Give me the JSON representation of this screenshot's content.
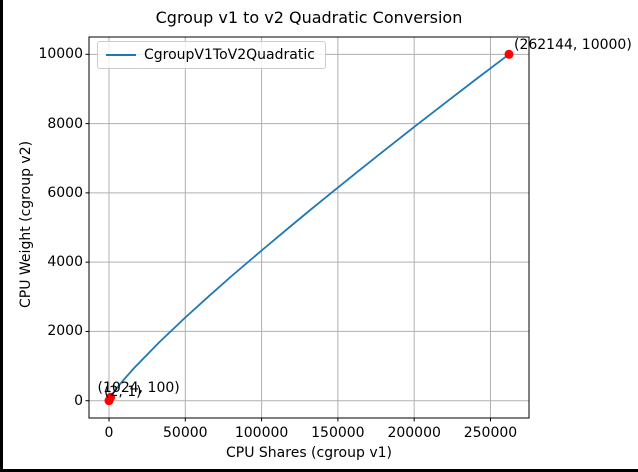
{
  "window": {
    "background_color": "#000000",
    "figure_background_color": "#ffffff"
  },
  "chart_data": {
    "type": "line",
    "title": "Cgroup v1 to v2 Quadratic Conversion",
    "xlabel": "CPU Shares (cgroup v1)",
    "ylabel": "CPU Weight (cgroup v2)",
    "grid": true,
    "legend_position": "upper left",
    "legend_entries": [
      "CgroupV1ToV2Quadratic"
    ],
    "xlim": [
      -13107,
      275251
    ],
    "ylim": [
      -499,
      10500
    ],
    "x_ticks": [
      0,
      50000,
      100000,
      150000,
      200000,
      250000
    ],
    "y_ticks": [
      0,
      2000,
      4000,
      6000,
      8000,
      10000
    ],
    "line_color": "#1f77b4",
    "grid_color": "#b0b0b0",
    "marker_color": "#ff0000",
    "axis_color": "#000000",
    "series": [
      {
        "name": "CgroupV1ToV2Quadratic",
        "x": [
          2,
          64,
          256,
          512,
          1024,
          2048,
          4096,
          8192,
          16384,
          32768,
          50000,
          65536,
          80000,
          100000,
          120000,
          131072,
          140000,
          160000,
          180000,
          200000,
          220000,
          240000,
          262144
        ],
        "y": [
          1,
          12,
          34,
          58,
          100,
          173,
          302,
          532,
          941,
          1681,
          2401,
          3021,
          3585,
          4337,
          5073,
          5476,
          5797,
          6508,
          7211,
          7904,
          8587,
          9262,
          10000
        ]
      }
    ],
    "annotated_points": [
      {
        "x": 2,
        "y": 1,
        "label": "(2, 1)",
        "label_offset": [
          -5,
          -17
        ]
      },
      {
        "x": 1024,
        "y": 100,
        "label": "(1024, 100)",
        "label_offset": [
          -13,
          -17
        ]
      },
      {
        "x": 262144,
        "y": 10000,
        "label": "(262144, 10000)",
        "label_offset": [
          5,
          -17
        ]
      }
    ]
  }
}
